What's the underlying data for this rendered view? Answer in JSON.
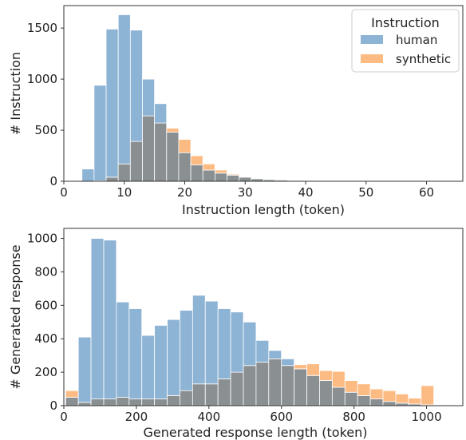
{
  "colors": {
    "human": "#8db3d5",
    "synthetic": "#fdbb84",
    "overlap": "#8a8f91"
  },
  "chart_data": [
    {
      "type": "histogram",
      "xlabel": "Instruction length (token)",
      "ylabel": "# Instruction",
      "xlim": [
        0,
        66
      ],
      "ylim": [
        0,
        1720
      ],
      "xticks": [
        0,
        10,
        20,
        30,
        40,
        50,
        60
      ],
      "yticks": [
        0,
        500,
        1000,
        1500
      ],
      "legend": {
        "title": "Instruction",
        "placement": "top-right",
        "entries": [
          "human",
          "synthetic"
        ]
      },
      "bin_start": 3,
      "bin_width": 2,
      "series": [
        {
          "name": "human",
          "values": [
            120,
            940,
            1490,
            1630,
            1480,
            1000,
            760,
            480,
            280,
            160,
            110,
            80,
            60,
            45,
            30,
            22,
            18,
            14,
            10,
            8,
            5,
            5,
            4,
            3,
            2,
            2,
            2,
            2,
            1,
            1,
            1
          ]
        },
        {
          "name": "synthetic",
          "values": [
            0,
            5,
            40,
            170,
            390,
            640,
            570,
            520,
            410,
            250,
            170,
            110,
            70,
            40,
            25,
            15,
            10,
            8,
            5,
            3,
            2,
            2,
            1,
            1,
            1,
            0,
            0,
            0,
            0,
            0,
            0
          ]
        }
      ]
    },
    {
      "type": "histogram",
      "xlabel": "Generated response length (token)",
      "ylabel": "# Generated response",
      "xlim": [
        0,
        1100
      ],
      "ylim": [
        0,
        1060
      ],
      "xticks": [
        0,
        200,
        400,
        600,
        800,
        1000
      ],
      "yticks": [
        0,
        200,
        400,
        600,
        800,
        1000
      ],
      "bin_start": 5,
      "bin_width": 35,
      "series": [
        {
          "name": "human",
          "values": [
            50,
            410,
            1000,
            990,
            620,
            580,
            420,
            480,
            515,
            570,
            660,
            625,
            580,
            560,
            500,
            390,
            330,
            280,
            220,
            180,
            150,
            110,
            80,
            60,
            40,
            25,
            15,
            10,
            5
          ]
        },
        {
          "name": "synthetic",
          "values": [
            90,
            20,
            40,
            40,
            50,
            40,
            40,
            40,
            60,
            90,
            130,
            130,
            160,
            200,
            240,
            260,
            280,
            240,
            245,
            250,
            210,
            205,
            150,
            130,
            100,
            90,
            70,
            45,
            120
          ]
        }
      ]
    }
  ]
}
